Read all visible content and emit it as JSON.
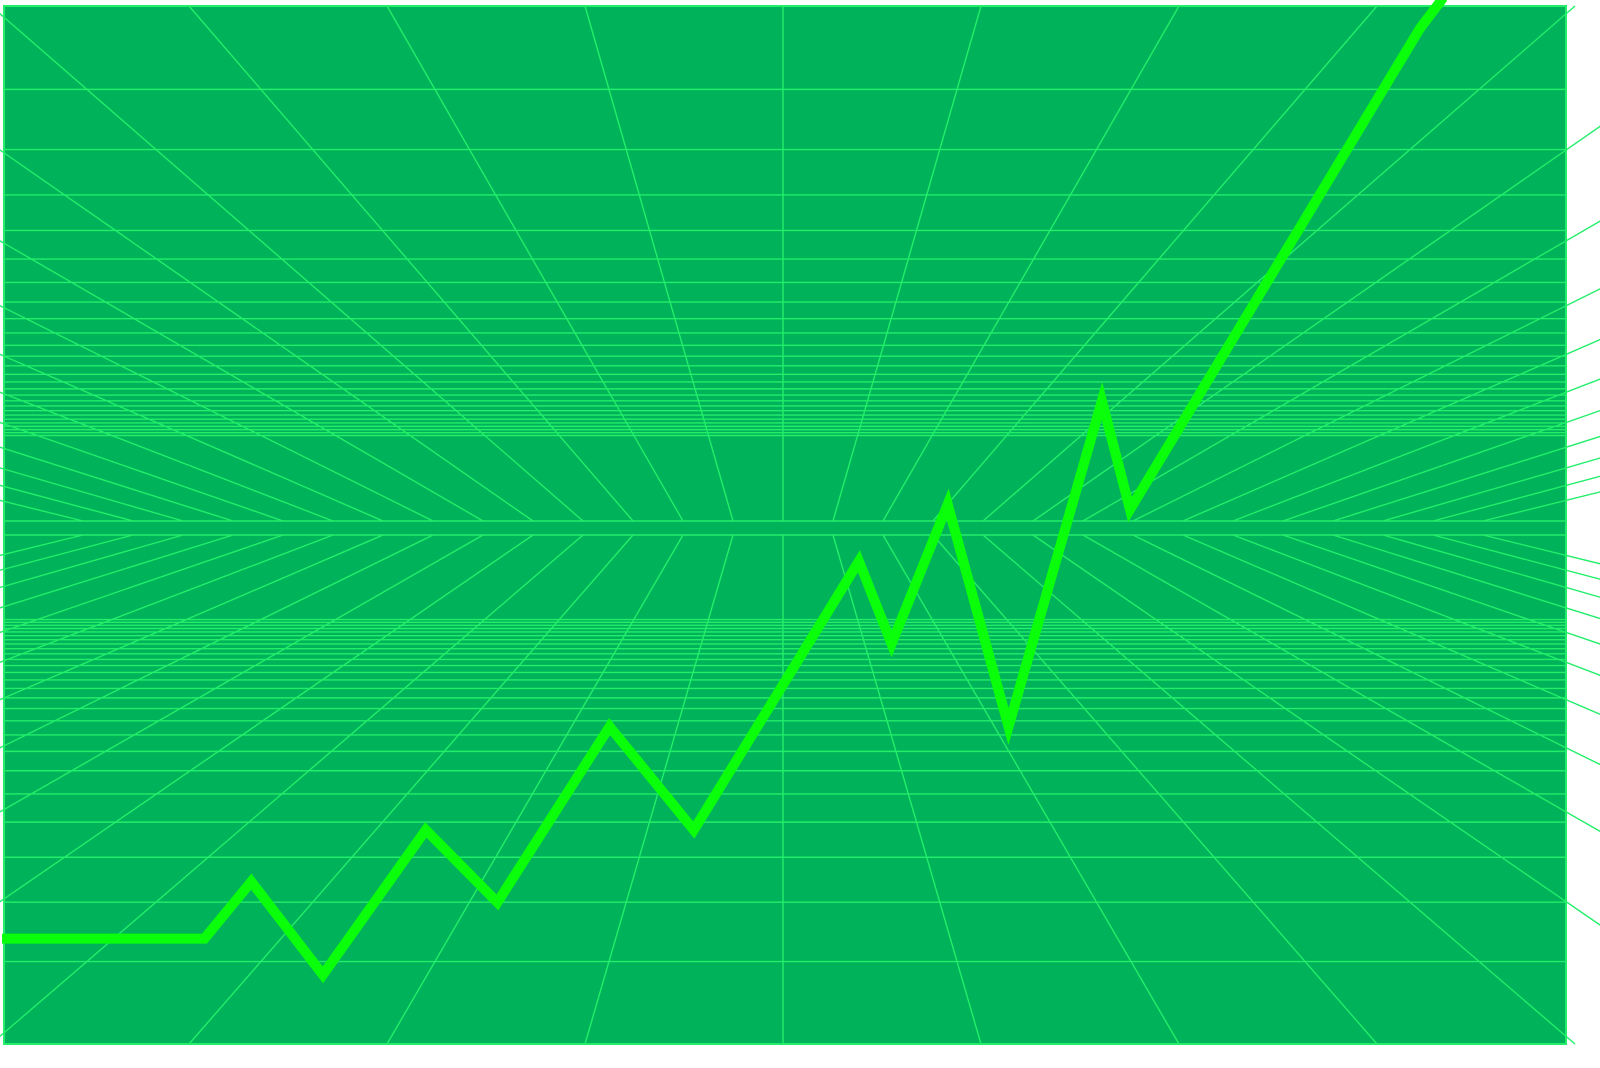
{
  "chart_data": {
    "type": "line",
    "title": "",
    "xlabel": "",
    "ylabel": "",
    "grid": true,
    "grid_style": "perspective",
    "legend": "none",
    "xlim": [
      0,
      100
    ],
    "ylim": [
      0,
      100
    ],
    "series": [
      {
        "x": [
          0,
          13,
          16,
          20.6,
          27.2,
          31.8,
          39,
          44.4,
          55,
          57.1,
          60.7,
          64.6,
          70.6,
          72.4,
          91,
          92.5
        ],
        "y": [
          10,
          10,
          15.5,
          6.5,
          20.5,
          13.5,
          30.5,
          20.5,
          46.5,
          38.5,
          52,
          30.5,
          62,
          51.5,
          98,
          101
        ]
      }
    ]
  },
  "colors": {
    "background": "#00b259",
    "grid": "#22ee6a",
    "line": "#0aff0a"
  }
}
